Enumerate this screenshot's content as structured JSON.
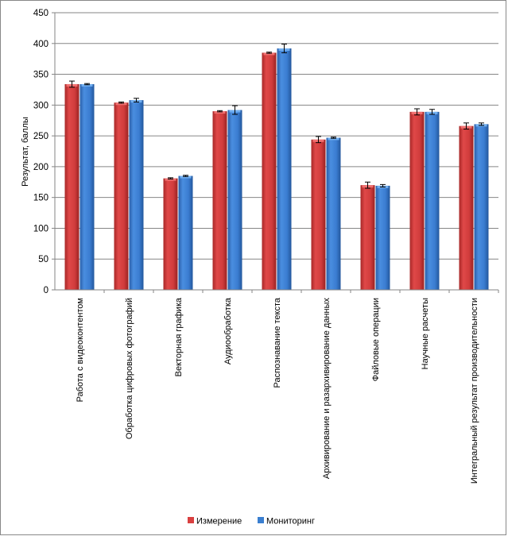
{
  "chart_data": {
    "type": "bar",
    "title": "",
    "xlabel": "",
    "ylabel": "Результат, баллы",
    "ylim": [
      0,
      450
    ],
    "yticks": [
      0,
      50,
      100,
      150,
      200,
      250,
      300,
      350,
      400,
      450
    ],
    "grid": true,
    "legend_position": "bottom",
    "categories": [
      "Работа с видеоконтентом",
      "Обработка цифровых фотографий",
      "Векторная графика",
      "Аудиообработка",
      "Распознавание текста",
      "Архивирование  и разархивирование данных",
      "Файловые операции",
      "Научные расчеты",
      "Интегральный результат производительности"
    ],
    "series": [
      {
        "name": "Измерение",
        "color": "#d94040",
        "values": [
          334,
          304,
          181,
          290,
          385,
          244,
          170,
          289,
          266
        ],
        "errors": [
          5,
          1,
          1,
          1,
          1,
          5,
          5,
          5,
          5
        ]
      },
      {
        "name": "Мониторинг",
        "color": "#3a7fd0",
        "values": [
          334,
          308,
          185,
          292,
          392,
          247,
          169,
          289,
          269
        ],
        "errors": [
          1,
          3,
          1,
          7,
          7,
          1,
          2,
          4,
          2
        ]
      }
    ]
  }
}
